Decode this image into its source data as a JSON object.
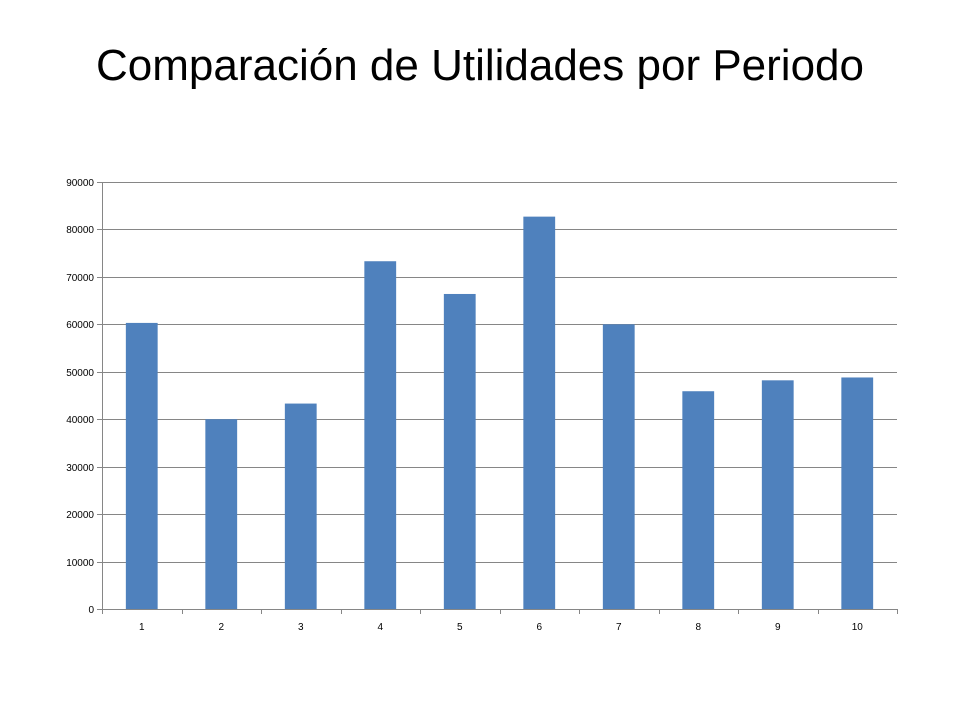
{
  "slide": {
    "title": "Comparación de Utilidades por Periodo"
  },
  "chart_data": {
    "type": "bar",
    "title": "",
    "xlabel": "",
    "ylabel": "",
    "categories": [
      "1",
      "2",
      "3",
      "4",
      "5",
      "6",
      "7",
      "8",
      "9",
      "10"
    ],
    "values": [
      60300,
      40000,
      43300,
      73300,
      66400,
      82700,
      60000,
      45900,
      48200,
      48800
    ],
    "ylim": [
      0,
      90000
    ],
    "yticks": [
      0,
      10000,
      20000,
      30000,
      40000,
      50000,
      60000,
      70000,
      80000,
      90000
    ],
    "grid": true,
    "legend": "none",
    "colors": {
      "bar": "#4F81BD",
      "grid": "#868686",
      "axis": "#868686"
    }
  }
}
